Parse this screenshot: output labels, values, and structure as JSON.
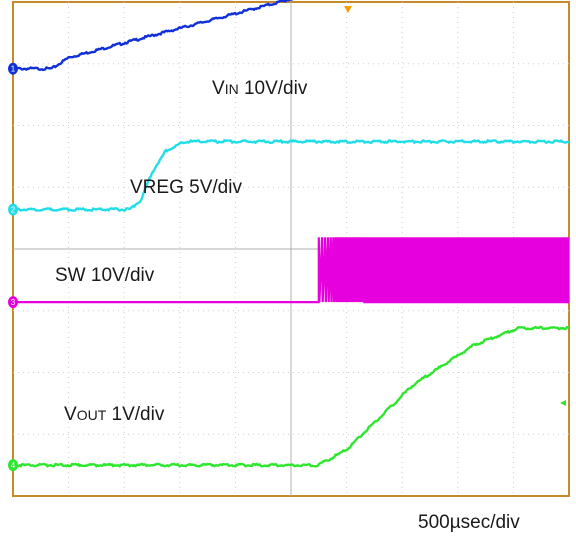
{
  "chart_data": {
    "type": "line",
    "title": "",
    "xlabel": "",
    "ylabel": "",
    "timebase": "500µsec/div",
    "x_divisions": 10,
    "y_divisions": 8,
    "grid": true,
    "series": [
      {
        "name": "VIN",
        "label_main": "V",
        "label_sub": "IN",
        "label_rest": " 10V/div",
        "channel": "1",
        "color": "#1030d8",
        "offset_div": 6.92,
        "points": [
          [
            0,
            0
          ],
          [
            0.7,
            0
          ],
          [
            1.0,
            0.18
          ],
          [
            6.65,
            1.52
          ],
          [
            7.0,
            1.6
          ],
          [
            10,
            1.6
          ]
        ]
      },
      {
        "name": "VREG",
        "label_main": "VREG",
        "label_sub": "",
        "label_rest": " 5V/div",
        "channel": "2",
        "color": "#22dde8",
        "offset_div": 4.64,
        "points": [
          [
            0,
            0
          ],
          [
            2.1,
            0
          ],
          [
            2.3,
            0.15
          ],
          [
            2.5,
            0.6
          ],
          [
            2.75,
            0.95
          ],
          [
            3.1,
            1.1
          ],
          [
            10,
            1.1
          ]
        ]
      },
      {
        "name": "SW",
        "label_main": "SW",
        "label_sub": "",
        "label_rest": " 10V/div",
        "channel": "3",
        "color": "#e600dd",
        "offset_div": 3.14,
        "low": 0,
        "high": 1.05,
        "switching_start_div": 5.5,
        "dense_start_div": 6.3
      },
      {
        "name": "VOUT",
        "label_main": "V",
        "label_sub": "OUT",
        "label_rest": " 1V/div",
        "channel": "4",
        "color": "#2ee62e",
        "offset_div": 0.5,
        "points": [
          [
            0,
            0
          ],
          [
            5.5,
            0
          ],
          [
            6.0,
            0.25
          ],
          [
            7.2,
            1.3
          ],
          [
            8.3,
            1.95
          ],
          [
            9.1,
            2.22
          ],
          [
            10,
            2.22
          ]
        ]
      }
    ]
  }
}
